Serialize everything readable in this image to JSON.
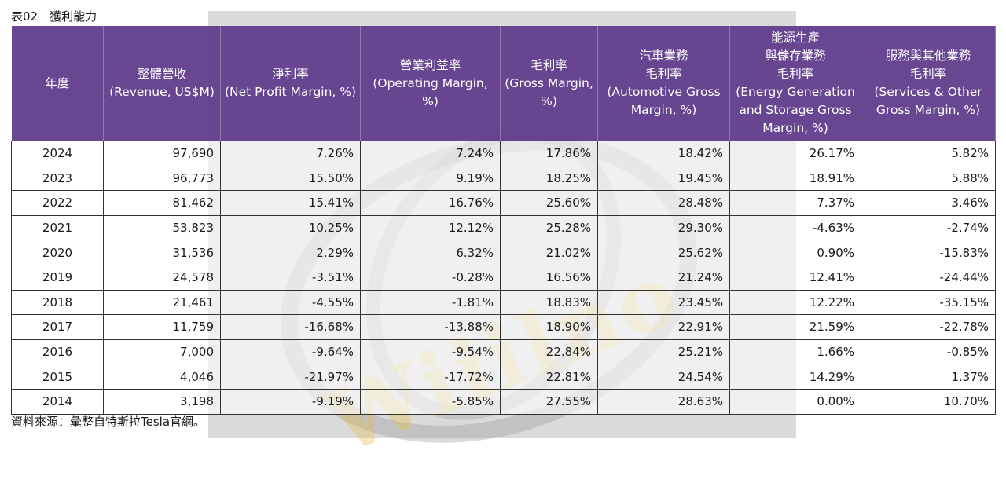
{
  "caption": "表02　獲利能力",
  "source": "資料來源：彙整自特斯拉Tesla官網。",
  "columns": [
    {
      "zh": "年度",
      "en": ""
    },
    {
      "zh": "整體營收",
      "en": "(Revenue, US$M)"
    },
    {
      "zh": "淨利率",
      "en": "(Net Profit Margin, %)"
    },
    {
      "zh": "營業利益率",
      "en": "(Operating Margin, %)"
    },
    {
      "zh": "毛利率",
      "en": "(Gross Margin, %)"
    },
    {
      "zh": "汽車業務 毛利率",
      "en": "(Automotive Gross Margin, %)"
    },
    {
      "zh": "能源生產 與儲存業務 毛利率",
      "en": "(Energy Generation and Storage Gross Margin, %)"
    },
    {
      "zh": "服務與其他業務 毛利率",
      "en": "(Services & Other Gross Margin, %)"
    }
  ],
  "rows": [
    [
      "2024",
      "97,690",
      "7.26%",
      "7.24%",
      "17.86%",
      "18.42%",
      "26.17%",
      "5.82%"
    ],
    [
      "2023",
      "96,773",
      "15.50%",
      "9.19%",
      "18.25%",
      "19.45%",
      "18.91%",
      "5.88%"
    ],
    [
      "2022",
      "81,462",
      "15.41%",
      "16.76%",
      "25.60%",
      "28.48%",
      "7.37%",
      "3.46%"
    ],
    [
      "2021",
      "53,823",
      "10.25%",
      "12.12%",
      "25.28%",
      "29.30%",
      "-4.63%",
      "-2.74%"
    ],
    [
      "2020",
      "31,536",
      "2.29%",
      "6.32%",
      "21.02%",
      "25.62%",
      "0.90%",
      "-15.83%"
    ],
    [
      "2019",
      "24,578",
      "-3.51%",
      "-0.28%",
      "16.56%",
      "21.24%",
      "12.41%",
      "-24.44%"
    ],
    [
      "2018",
      "21,461",
      "-4.55%",
      "-1.81%",
      "18.83%",
      "23.45%",
      "12.22%",
      "-35.15%"
    ],
    [
      "2017",
      "11,759",
      "-16.68%",
      "-13.88%",
      "18.90%",
      "22.91%",
      "21.59%",
      "-22.78%"
    ],
    [
      "2016",
      "7,000",
      "-9.64%",
      "-9.54%",
      "22.84%",
      "25.21%",
      "1.66%",
      "-0.85%"
    ],
    [
      "2015",
      "4,046",
      "-21.97%",
      "-17.72%",
      "22.81%",
      "24.54%",
      "14.29%",
      "1.37%"
    ],
    [
      "2014",
      "3,198",
      "-9.19%",
      "-5.85%",
      "27.55%",
      "28.63%",
      "0.00%",
      "10.70%"
    ]
  ],
  "watermark": {
    "text": "Wiiilno"
  },
  "colors": {
    "header_bg": "#623e8c",
    "header_text": "#ffffff",
    "watermark_bg": "#dadada"
  }
}
